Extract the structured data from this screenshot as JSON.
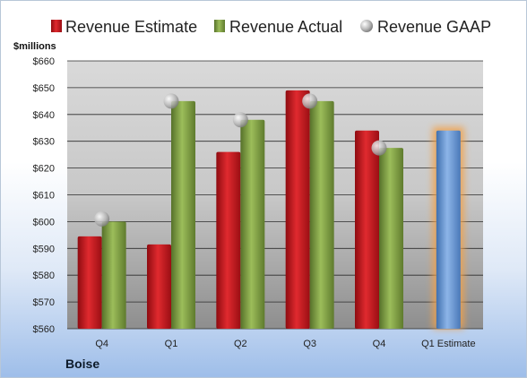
{
  "company": "Boise",
  "chart_data": {
    "type": "bar",
    "ylabel": "$millions",
    "ylim": [
      560,
      660
    ],
    "yticks": [
      560,
      570,
      580,
      590,
      600,
      610,
      620,
      630,
      640,
      650,
      660
    ],
    "ytick_labels": [
      "$560",
      "$570",
      "$580",
      "$590",
      "$600",
      "$610",
      "$620",
      "$630",
      "$640",
      "$650",
      "$660"
    ],
    "categories": [
      "Q4",
      "Q1",
      "Q2",
      "Q3",
      "Q4",
      "Q1 Estimate"
    ],
    "grid": true,
    "legend_position": "top",
    "series": [
      {
        "name": "Revenue Estimate",
        "kind": "bar",
        "color": "#c0141c",
        "values": [
          594.5,
          591.5,
          626,
          649,
          634,
          null
        ]
      },
      {
        "name": "Revenue Actual",
        "kind": "bar",
        "color": "#77963a",
        "values": [
          600,
          null,
          638,
          645,
          627.5,
          null
        ]
      },
      {
        "name": "Revenue GAAP",
        "kind": "marker",
        "color": "#b0b0b0",
        "values": [
          601,
          645,
          638,
          645,
          627.5,
          null
        ]
      },
      {
        "name": "",
        "kind": "bar",
        "color": "#5b8fd1",
        "values": [
          null,
          null,
          null,
          null,
          null,
          634
        ]
      }
    ],
    "q1_actual": 645,
    "highlight_color": "#f2a14a"
  }
}
